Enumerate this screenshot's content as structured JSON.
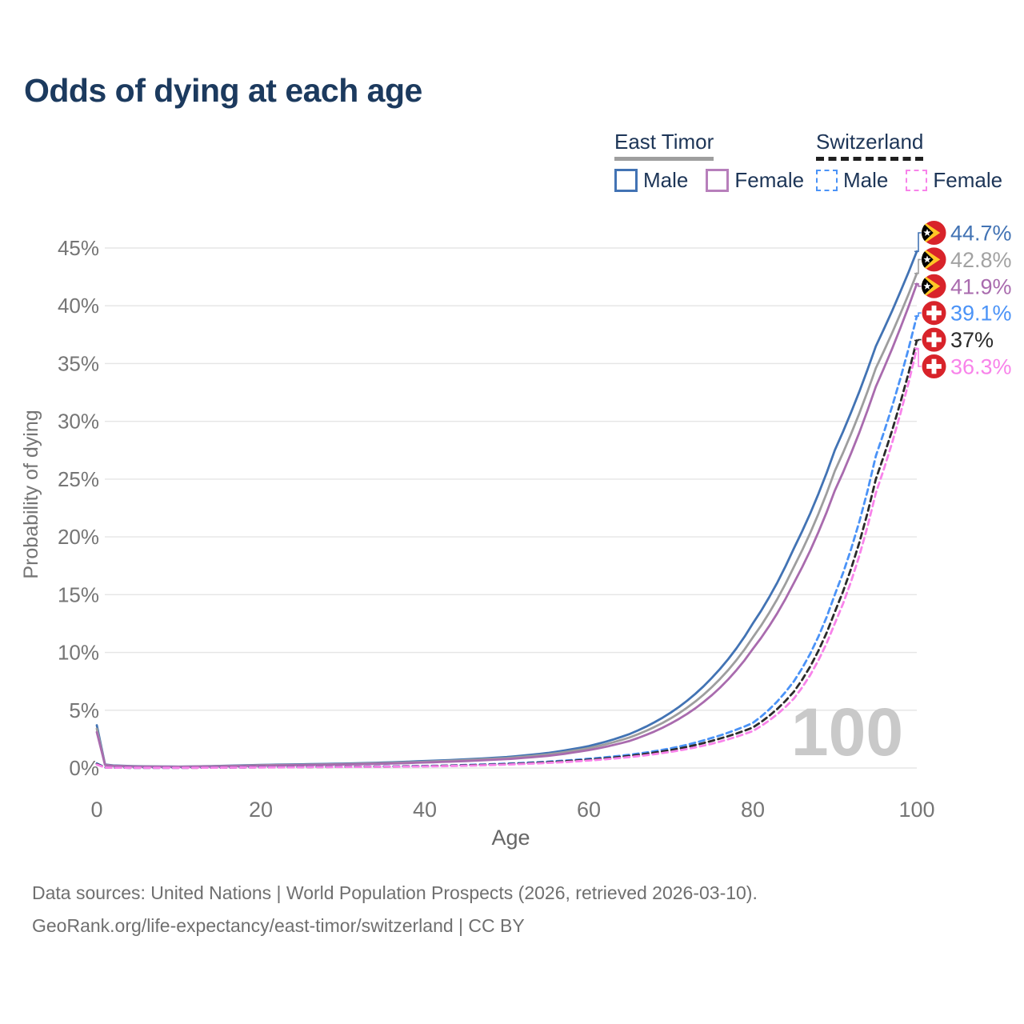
{
  "title": "Odds of dying at each age",
  "watermark": "100",
  "colors": {
    "east_timor_male": "#4273b4",
    "east_timor_both": "#9e9e9e",
    "east_timor_female": "#a96bae",
    "switzerland_male": "#4b93f7",
    "switzerland_both": "#2b2b2b",
    "switzerland_female": "#f883ea",
    "title_text": "#1c3a5e",
    "axis_text": "#757575",
    "gridline": "#e5e5e5",
    "watermark_text": "#c9c9c9",
    "flag_red": "#d8232a",
    "flag_yellow": "#ffc726"
  },
  "legend": {
    "groups": [
      {
        "name": "East Timor",
        "line_style": "solid",
        "underline_color": "#9e9e9e",
        "items": [
          {
            "label": "Male",
            "color": "#4273b4"
          },
          {
            "label": "Female",
            "color": "#b77fbb"
          }
        ]
      },
      {
        "name": "Switzerland",
        "line_style": "dashed",
        "underline_color": "#1f1f1f",
        "items": [
          {
            "label": "Male",
            "color": "#4b93f7"
          },
          {
            "label": "Female",
            "color": "#f883ea"
          }
        ]
      }
    ]
  },
  "chart_data": {
    "type": "line",
    "title": "Odds of dying at each age",
    "xlabel": "Age",
    "ylabel": "Probability of dying",
    "xlim": [
      0,
      100
    ],
    "ylim": [
      0,
      45
    ],
    "x_ticks": [
      0,
      20,
      40,
      60,
      80,
      100
    ],
    "y_ticks": [
      0,
      5,
      10,
      15,
      20,
      25,
      30,
      35,
      40,
      45
    ],
    "y_tick_suffix": "%",
    "grid": true,
    "legend_position": "top-right",
    "age_watermark": "100",
    "x": [
      0,
      1,
      2,
      5,
      10,
      15,
      20,
      25,
      30,
      35,
      40,
      45,
      50,
      55,
      60,
      65,
      70,
      75,
      80,
      85,
      90,
      95,
      100
    ],
    "series": [
      {
        "name": "East Timor Male",
        "color": "#4273b4",
        "dash": "solid",
        "flag": "east-timor",
        "end_label": "44.7%",
        "label_color": "#4273b4",
        "values": [
          3.7,
          0.3,
          0.22,
          0.15,
          0.12,
          0.18,
          0.27,
          0.32,
          0.38,
          0.47,
          0.6,
          0.75,
          0.95,
          1.3,
          1.9,
          2.95,
          4.8,
          7.8,
          12.5,
          19.0,
          27.5,
          36.5,
          44.7
        ]
      },
      {
        "name": "East Timor Both Sexes",
        "color": "#9e9e9e",
        "dash": "solid",
        "flag": "east-timor",
        "end_label": "42.8%",
        "label_color": "#a2a2a2",
        "values": [
          3.4,
          0.28,
          0.2,
          0.13,
          0.11,
          0.16,
          0.24,
          0.28,
          0.34,
          0.42,
          0.54,
          0.68,
          0.86,
          1.18,
          1.72,
          2.65,
          4.3,
          7.0,
          11.3,
          17.4,
          25.7,
          34.6,
          42.8
        ]
      },
      {
        "name": "East Timor Female",
        "color": "#a96bae",
        "dash": "solid",
        "flag": "east-timor",
        "end_label": "41.9%",
        "label_color": "#a96bae",
        "values": [
          3.1,
          0.26,
          0.18,
          0.12,
          0.1,
          0.14,
          0.2,
          0.25,
          0.3,
          0.37,
          0.48,
          0.6,
          0.77,
          1.05,
          1.55,
          2.35,
          3.85,
          6.3,
          10.3,
          16.0,
          24.0,
          33.0,
          41.9
        ]
      },
      {
        "name": "Switzerland Male",
        "color": "#4b93f7",
        "dash": "dashed",
        "flag": "switzerland",
        "end_label": "39.1%",
        "label_color": "#4b93f7",
        "values": [
          0.4,
          0.05,
          0.03,
          0.02,
          0.02,
          0.04,
          0.07,
          0.09,
          0.11,
          0.14,
          0.18,
          0.26,
          0.38,
          0.55,
          0.8,
          1.15,
          1.7,
          2.6,
          3.9,
          7.5,
          15.0,
          27.0,
          39.1
        ]
      },
      {
        "name": "Switzerland Both Sexes",
        "color": "#2b2b2b",
        "dash": "dashed",
        "flag": "switzerland",
        "end_label": "37%",
        "label_color": "#2b2b2b",
        "values": [
          0.35,
          0.05,
          0.03,
          0.02,
          0.02,
          0.03,
          0.06,
          0.08,
          0.1,
          0.12,
          0.16,
          0.23,
          0.34,
          0.5,
          0.72,
          1.05,
          1.55,
          2.35,
          3.5,
          6.6,
          13.5,
          25.0,
          37.0
        ]
      },
      {
        "name": "Switzerland Female",
        "color": "#f883ea",
        "dash": "dashed",
        "flag": "switzerland",
        "end_label": "36.3%",
        "label_color": "#f883ea",
        "values": [
          0.3,
          0.04,
          0.03,
          0.02,
          0.02,
          0.03,
          0.05,
          0.07,
          0.09,
          0.11,
          0.14,
          0.2,
          0.3,
          0.44,
          0.65,
          0.95,
          1.4,
          2.1,
          3.2,
          6.0,
          12.5,
          23.8,
          36.3
        ]
      }
    ]
  },
  "footer": {
    "line1": "Data sources: United Nations | World Population Prospects (2026, retrieved 2026-03-10).",
    "line2": "GeoRank.org/life-expectancy/east-timor/switzerland | CC BY"
  }
}
